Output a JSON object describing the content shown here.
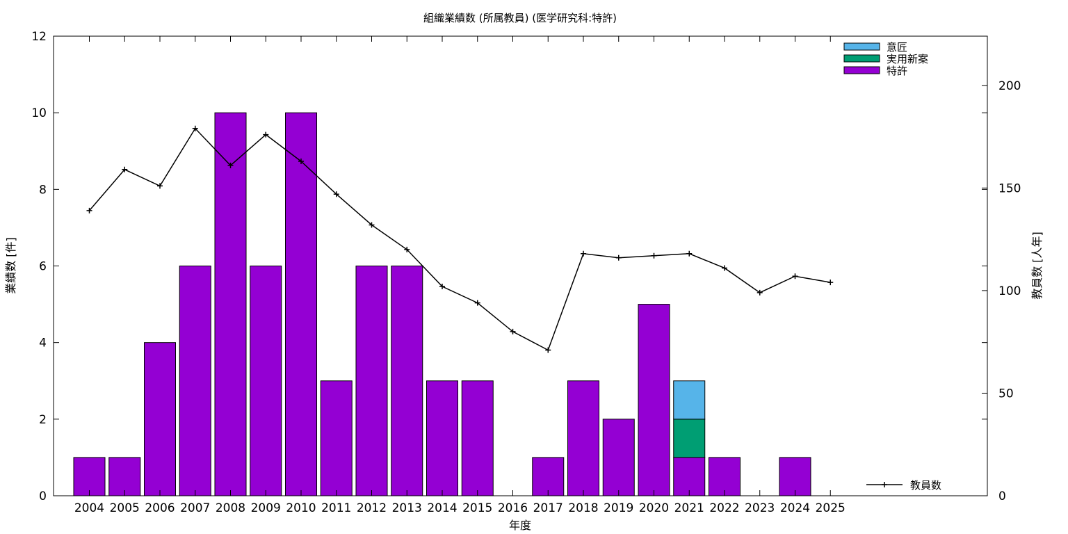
{
  "chart_data": {
    "type": "bar",
    "stacked": true,
    "title": "組織業績数 (所属教員) (医学研究科:特許)",
    "xlabel": "年度",
    "ylabel": "業績数 [件]",
    "y2label": "教員数 [人年]",
    "categories": [
      "2004",
      "2005",
      "2006",
      "2007",
      "2008",
      "2009",
      "2010",
      "2011",
      "2012",
      "2013",
      "2014",
      "2015",
      "2016",
      "2017",
      "2018",
      "2019",
      "2020",
      "2021",
      "2022",
      "2023",
      "2024",
      "2025"
    ],
    "ylim": [
      0,
      12
    ],
    "yticks": [
      "0",
      "2",
      "4",
      "6",
      "8",
      "10",
      "12"
    ],
    "y2lim": [
      0,
      224
    ],
    "y2ticks": [
      "0",
      "50",
      "100",
      "150",
      "200"
    ],
    "grid": false,
    "legend_position": "top-right",
    "series": [
      {
        "name": "特許",
        "color": "#9400d3",
        "values": [
          1,
          1,
          4,
          6,
          10,
          6,
          10,
          3,
          6,
          6,
          3,
          3,
          0,
          1,
          3,
          2,
          5,
          1,
          1,
          0,
          1,
          0
        ]
      },
      {
        "name": "実用新案",
        "color": "#009e73",
        "values": [
          0,
          0,
          0,
          0,
          0,
          0,
          0,
          0,
          0,
          0,
          0,
          0,
          0,
          0,
          0,
          0,
          0,
          1,
          0,
          0,
          0,
          0
        ]
      },
      {
        "name": "意匠",
        "color": "#56b4e9",
        "values": [
          0,
          0,
          0,
          0,
          0,
          0,
          0,
          0,
          0,
          0,
          0,
          0,
          0,
          0,
          0,
          0,
          0,
          1,
          0,
          0,
          0,
          0
        ]
      }
    ],
    "line_series": {
      "name": "教員数",
      "axis": "right",
      "color": "#000000",
      "values": [
        139,
        159,
        151,
        179,
        161,
        176,
        163,
        147,
        132,
        120,
        102,
        94,
        80,
        71,
        118,
        116,
        117,
        118,
        111,
        99,
        107,
        104
      ]
    }
  }
}
